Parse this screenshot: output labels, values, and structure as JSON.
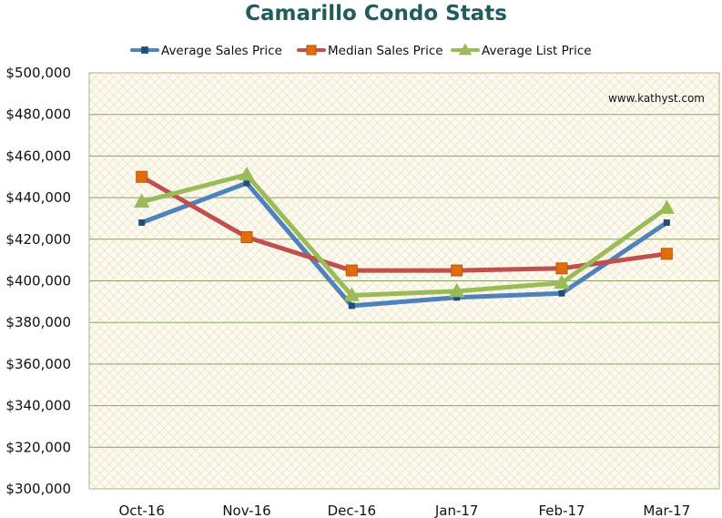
{
  "chart_data": {
    "type": "line",
    "title": "Camarillo Condo Stats",
    "annotation": "www.kathyst.com",
    "categories": [
      "Oct-16",
      "Nov-16",
      "Dec-16",
      "Jan-17",
      "Feb-17",
      "Mar-17"
    ],
    "ylim": [
      300000,
      500000
    ],
    "y_ticks": [
      300000,
      320000,
      340000,
      360000,
      380000,
      400000,
      420000,
      440000,
      460000,
      480000,
      500000
    ],
    "y_tick_labels": [
      "$300,000",
      "$320,000",
      "$340,000",
      "$360,000",
      "$380,000",
      "$400,000",
      "$420,000",
      "$440,000",
      "$460,000",
      "$480,000",
      "$500,000"
    ],
    "grid": true,
    "legend_position": "top",
    "series": [
      {
        "name": "Average Sales Price",
        "color": "#4f81bd",
        "marker_color": "#1f4e79",
        "marker": "square-small",
        "values": [
          428000,
          447000,
          388000,
          392000,
          394000,
          428000
        ]
      },
      {
        "name": "Median Sales Price",
        "color": "#c0504d",
        "marker_color": "#e36c0a",
        "marker": "square-large",
        "values": [
          450000,
          421000,
          405000,
          405000,
          406000,
          413000
        ]
      },
      {
        "name": "Average List Price",
        "color": "#9bbb59",
        "marker_color": "#9bbb59",
        "marker": "triangle",
        "values": [
          438000,
          451000,
          393000,
          395000,
          399000,
          435000
        ]
      }
    ]
  }
}
